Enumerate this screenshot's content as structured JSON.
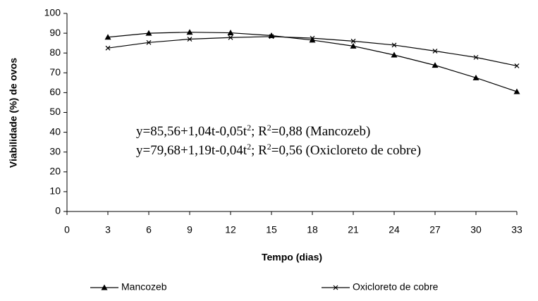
{
  "chart_data": {
    "type": "line",
    "xlabel": "Tempo (dias)",
    "ylabel": "Viabilidade (%) de ovos",
    "x": [
      3,
      6,
      9,
      12,
      15,
      18,
      21,
      24,
      27,
      30,
      33
    ],
    "series": [
      {
        "name": "Mancozeb",
        "color": "#000000",
        "marker": "triangle",
        "values": [
          88,
          90,
          90.5,
          90.2,
          88.8,
          86.5,
          83.5,
          79,
          73.8,
          67.5,
          60.5
        ]
      },
      {
        "name": "Oxicloreto de cobre",
        "color": "#000000",
        "marker": "x",
        "values": [
          82.5,
          85.3,
          87,
          87.8,
          88.3,
          87.5,
          86,
          84,
          81,
          77.8,
          73.5
        ]
      }
    ],
    "xlim": [
      0,
      33
    ],
    "xticks": [
      0,
      3,
      6,
      9,
      12,
      15,
      18,
      21,
      24,
      27,
      30,
      33
    ],
    "ylim": [
      0,
      100
    ],
    "yticks": [
      0,
      10,
      20,
      30,
      40,
      50,
      60,
      70,
      80,
      90,
      100
    ],
    "grid": false,
    "legend": "bottom",
    "annotations": [
      [
        "y=85,56+1,04t-0,05t",
        "2",
        "; R",
        "2",
        "=0,88 (Mancozeb)"
      ],
      [
        "y=79,68+1,19t-0,04t",
        "2",
        "; R",
        "2",
        "=0,56 (Oxicloreto de cobre)"
      ]
    ]
  }
}
